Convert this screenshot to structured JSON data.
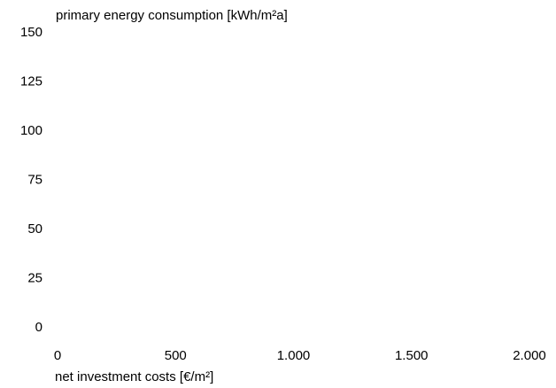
{
  "chart_data": {
    "type": "scatter",
    "title": "",
    "xlabel": "net investment costs [€/m²]",
    "ylabel": "primary energy consumption [kWh/m²a]",
    "xlim": [
      0,
      2000
    ],
    "ylim": [
      0,
      150
    ],
    "x_ticks": [
      {
        "value": 0,
        "label": "0"
      },
      {
        "value": 500,
        "label": "500"
      },
      {
        "value": 1000,
        "label": "1.000"
      },
      {
        "value": 1500,
        "label": "1.500"
      },
      {
        "value": 2000,
        "label": "2.000"
      }
    ],
    "y_ticks": [
      {
        "value": 0,
        "label": "0"
      },
      {
        "value": 25,
        "label": "25"
      },
      {
        "value": 50,
        "label": "50"
      },
      {
        "value": 75,
        "label": "75"
      },
      {
        "value": 100,
        "label": "100"
      },
      {
        "value": 125,
        "label": "125"
      },
      {
        "value": 150,
        "label": "150"
      }
    ],
    "series": [],
    "grid": false,
    "legend": "none"
  }
}
